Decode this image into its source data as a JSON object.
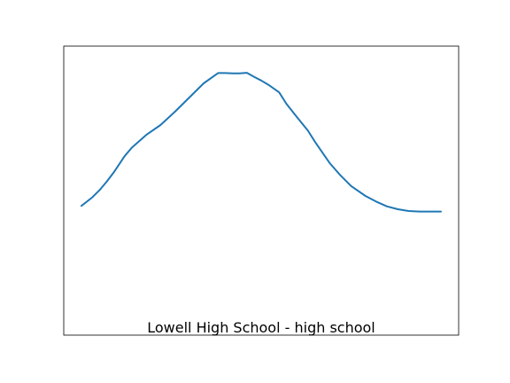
{
  "chart_data": {
    "type": "line",
    "title": "Lowell High School - high school",
    "xlabel": "",
    "ylabel": "",
    "axes_visible": false,
    "grid": false,
    "legend": "none",
    "xlim": [
      0,
      100
    ],
    "ylim": [
      0,
      1
    ],
    "series": [
      {
        "color": "#1f77b4",
        "x": [
          0,
          3,
          5,
          7,
          9,
          12,
          14,
          18,
          22,
          26,
          30,
          34,
          38,
          40,
          42,
          44,
          46,
          48,
          50,
          52,
          55,
          57,
          60,
          63,
          65,
          69,
          72,
          75,
          79,
          82,
          85,
          88,
          91,
          94,
          97,
          100
        ],
        "y": [
          0.44,
          0.47,
          0.495,
          0.525,
          0.558,
          0.615,
          0.645,
          0.69,
          0.725,
          0.772,
          0.822,
          0.872,
          0.908,
          0.908,
          0.907,
          0.907,
          0.909,
          0.895,
          0.882,
          0.867,
          0.84,
          0.8,
          0.752,
          0.705,
          0.665,
          0.592,
          0.548,
          0.51,
          0.475,
          0.455,
          0.438,
          0.428,
          0.422,
          0.42,
          0.42,
          0.42
        ]
      }
    ]
  }
}
